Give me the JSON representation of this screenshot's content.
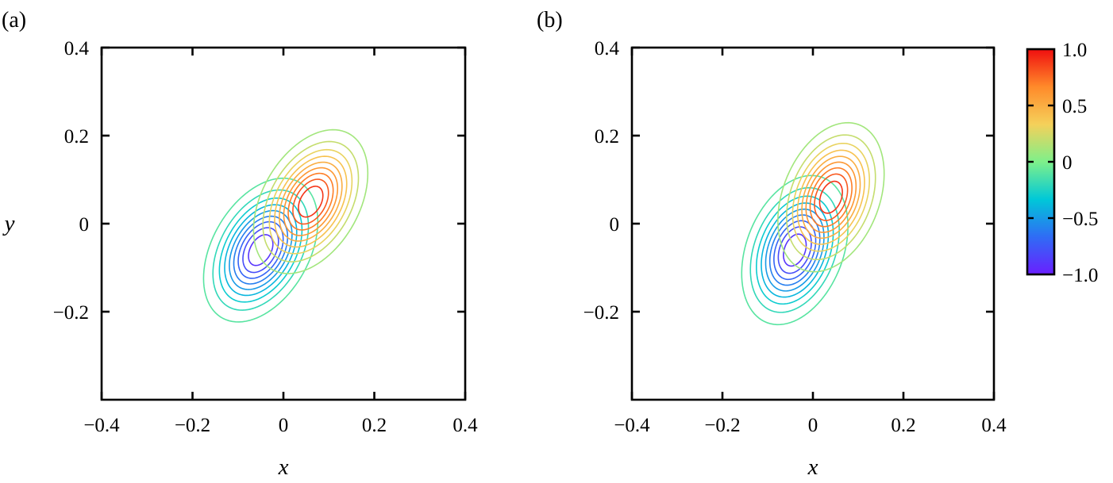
{
  "chart_data": [
    {
      "type": "contour",
      "panel_label": "(a)",
      "xlabel": "x",
      "ylabel": "y",
      "xlim": [
        -0.4,
        0.4
      ],
      "ylim": [
        -0.4,
        0.4
      ],
      "x_ticks": [
        -0.4,
        -0.2,
        0,
        0.2,
        0.4
      ],
      "y_ticks": [
        -0.2,
        0,
        0.2,
        0.4
      ],
      "x_tick_labels": [
        "−0.4",
        "−0.2",
        "0",
        "0.2",
        "0.4"
      ],
      "y_tick_labels": [
        "−0.2",
        "0",
        "0.2",
        "0.4"
      ],
      "positive_extremum": {
        "x": 0.06,
        "y": 0.05,
        "value": 1.0
      },
      "negative_extremum": {
        "x": -0.05,
        "y": -0.06,
        "value": -1.0
      },
      "contour_levels": [
        -0.9,
        -0.8,
        -0.7,
        -0.6,
        -0.5,
        -0.4,
        -0.3,
        -0.2,
        -0.1,
        0.1,
        0.2,
        0.3,
        0.4,
        0.5,
        0.6,
        0.7,
        0.8,
        0.9
      ],
      "lobe_sigma_major": 0.082,
      "lobe_sigma_minor": 0.05,
      "lobe_orientation_deg": 62,
      "grid": false
    },
    {
      "type": "contour",
      "panel_label": "(b)",
      "xlabel": "x",
      "ylabel": "",
      "xlim": [
        -0.4,
        0.4
      ],
      "ylim": [
        -0.4,
        0.4
      ],
      "x_ticks": [
        -0.4,
        -0.2,
        0,
        0.2,
        0.4
      ],
      "y_ticks": [
        -0.2,
        0,
        0.2,
        0.4
      ],
      "x_tick_labels": [
        "−0.4",
        "−0.2",
        "0",
        "0.2",
        "0.4"
      ],
      "y_tick_labels": [
        "−0.2",
        "0",
        "0.2",
        "0.4"
      ],
      "positive_extremum": {
        "x": 0.04,
        "y": 0.06,
        "value": 1.0
      },
      "negative_extremum": {
        "x": -0.04,
        "y": -0.06,
        "value": -1.0
      },
      "contour_levels": [
        -0.9,
        -0.8,
        -0.7,
        -0.6,
        -0.5,
        -0.4,
        -0.3,
        -0.2,
        -0.1,
        0.1,
        0.2,
        0.3,
        0.4,
        0.5,
        0.6,
        0.7,
        0.8,
        0.9
      ],
      "lobe_sigma_major": 0.082,
      "lobe_sigma_minor": 0.05,
      "lobe_orientation_deg": 70,
      "grid": false
    }
  ],
  "colorbar": {
    "range": [
      -1.0,
      1.0
    ],
    "ticks": [
      -1.0,
      -0.5,
      0,
      0.5,
      1.0
    ],
    "tick_labels": [
      "−1.0",
      "−0.5",
      "0",
      "0.5",
      "1.0"
    ],
    "colormap": "rainbow",
    "colors": [
      "#6a1fff",
      "#2f6cf5",
      "#00c8d8",
      "#7ef08a",
      "#f5d05a",
      "#ff8a2a",
      "#f00f0f"
    ]
  }
}
